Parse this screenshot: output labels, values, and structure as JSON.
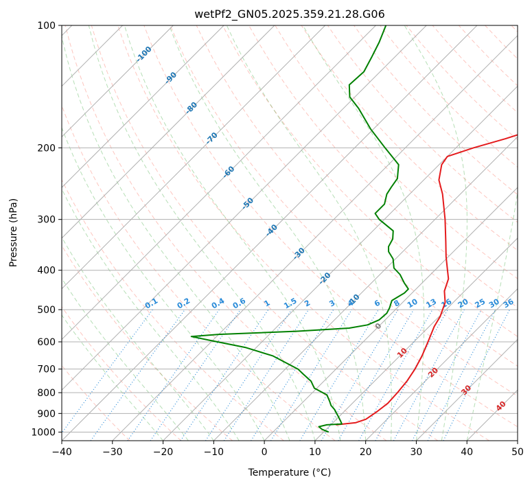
{
  "chart_data": {
    "type": "line",
    "title": "wetPf2_GN05.2025.359.21.28.G06",
    "xlabel": "Temperature (°C)",
    "ylabel": "Pressure (hPa)",
    "xlim": [
      -40,
      50
    ],
    "ylim": [
      1050,
      100
    ],
    "y_scale": "log",
    "x_ticks": [
      -40,
      -30,
      -20,
      -10,
      0,
      10,
      20,
      30,
      40,
      50
    ],
    "y_ticks": [
      100,
      200,
      300,
      400,
      500,
      600,
      700,
      800,
      900,
      1000
    ],
    "grid": true,
    "skew": true,
    "series": [
      {
        "color": "#e41a1c",
        "points": [
          [
            11.0,
            960
          ],
          [
            14.5,
            948
          ],
          [
            15.8,
            930
          ],
          [
            16.5,
            890
          ],
          [
            17.0,
            850
          ],
          [
            16.8,
            800
          ],
          [
            16.4,
            750
          ],
          [
            15.6,
            700
          ],
          [
            14.4,
            650
          ],
          [
            12.8,
            600
          ],
          [
            11.0,
            550
          ],
          [
            10.2,
            520
          ],
          [
            8.4,
            480
          ],
          [
            6.0,
            450
          ],
          [
            4.4,
            420
          ],
          [
            2.5,
            400
          ],
          [
            -0.5,
            370
          ],
          [
            -3.5,
            340
          ],
          [
            -8.0,
            300
          ],
          [
            -13.5,
            260
          ],
          [
            -17.0,
            240
          ],
          [
            -19.5,
            220
          ],
          [
            -20.0,
            210
          ],
          [
            -16.5,
            200
          ],
          [
            -12.0,
            190
          ],
          [
            -8.0,
            180
          ],
          [
            -3.5,
            165
          ],
          [
            -0.5,
            155
          ],
          [
            3.0,
            145
          ],
          [
            4.5,
            135
          ],
          [
            3.5,
            125
          ],
          [
            2.3,
            118
          ],
          [
            1.5,
            110
          ],
          [
            1.0,
            100
          ]
        ]
      },
      {
        "color": "#008000",
        "points": [
          [
            11.0,
            1000
          ],
          [
            9.2,
            985
          ],
          [
            8.0,
            970
          ],
          [
            9.2,
            960
          ],
          [
            12.0,
            955
          ],
          [
            11.2,
            940
          ],
          [
            9.5,
            910
          ],
          [
            7.7,
            880
          ],
          [
            6.2,
            860
          ],
          [
            5.1,
            840
          ],
          [
            3.3,
            810
          ],
          [
            -0.5,
            780
          ],
          [
            -2.5,
            750
          ],
          [
            -5.5,
            720
          ],
          [
            -7.5,
            700
          ],
          [
            -15.0,
            650
          ],
          [
            -22.0,
            620
          ],
          [
            -30.5,
            595
          ],
          [
            -35.0,
            582
          ],
          [
            -30.0,
            575
          ],
          [
            -15.0,
            565
          ],
          [
            -5.5,
            555
          ],
          [
            -2.5,
            545
          ],
          [
            -1.2,
            530
          ],
          [
            -1.0,
            510
          ],
          [
            -1.5,
            495
          ],
          [
            -2.0,
            485
          ],
          [
            -2.5,
            475
          ],
          [
            -2.0,
            465
          ],
          [
            -1.5,
            455
          ],
          [
            -1.5,
            445
          ],
          [
            -3.5,
            430
          ],
          [
            -6.0,
            410
          ],
          [
            -8.5,
            395
          ],
          [
            -10.5,
            375
          ],
          [
            -12.8,
            360
          ],
          [
            -13.8,
            350
          ],
          [
            -14.5,
            335
          ],
          [
            -16.0,
            320
          ],
          [
            -21.0,
            300
          ],
          [
            -23.0,
            290
          ],
          [
            -23.0,
            275
          ],
          [
            -24.5,
            260
          ],
          [
            -25.0,
            250
          ],
          [
            -25.5,
            238
          ],
          [
            -28.0,
            220
          ],
          [
            -34.0,
            200
          ],
          [
            -40.5,
            180
          ],
          [
            -47.0,
            160
          ],
          [
            -51.0,
            150
          ],
          [
            -53.5,
            140
          ],
          [
            -53.2,
            130
          ],
          [
            -54.5,
            120
          ],
          [
            -56.0,
            110
          ],
          [
            -58.0,
            100
          ]
        ]
      }
    ],
    "mixing_ratio_labels": [
      "0.1",
      "0.2",
      "0.4",
      "0.6",
      "1",
      "1.5",
      "2",
      "3",
      "4",
      "6",
      "8",
      "10",
      "13",
      "16",
      "20",
      "25",
      "30",
      "36"
    ],
    "isotherm_labels": [
      "-100",
      "-90",
      "-80",
      "-70",
      "-60",
      "-50",
      "-40",
      "-30",
      "-20",
      "-10",
      "0",
      "10",
      "20",
      "30",
      "40"
    ],
    "colors": {
      "temperature": "#e41a1c",
      "dewpoint": "#008000",
      "isotherm_label_cold": "#1f77b4",
      "isotherm_label_zero": "#7f7f7f",
      "isotherm_label_warm": "#d62728",
      "mixing_ratio": "#2a8bd8",
      "dry_adiabat": "#fa8072",
      "moist_adiabat": "#2ca02c",
      "grid": "#b0b0b0"
    }
  }
}
